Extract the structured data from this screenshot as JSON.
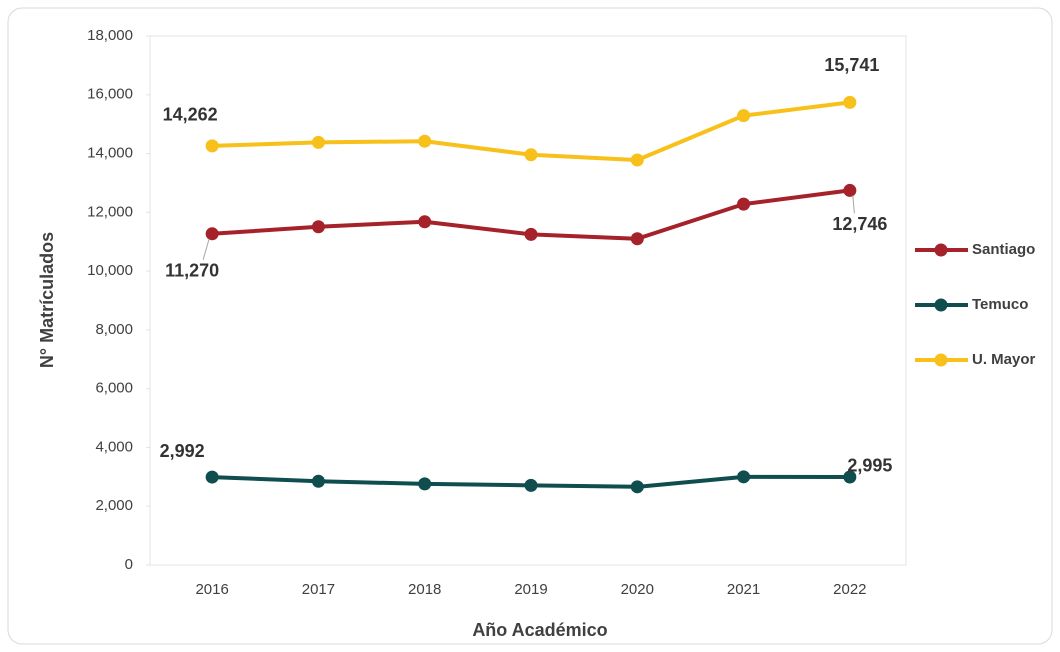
{
  "chart_data": {
    "type": "line",
    "categories": [
      "2016",
      "2017",
      "2018",
      "2019",
      "2020",
      "2021",
      "2022"
    ],
    "series": [
      {
        "name": "Santiago",
        "color": "#a5222a",
        "values": [
          11270,
          11510,
          11680,
          11250,
          11100,
          12280,
          12746
        ],
        "value_labels": [
          "11,270",
          null,
          null,
          null,
          null,
          null,
          "12,746"
        ]
      },
      {
        "name": "Temuco",
        "color": "#0f4d4f",
        "values": [
          2992,
          2850,
          2760,
          2710,
          2660,
          3000,
          2995
        ],
        "value_labels": [
          "2,992",
          null,
          null,
          null,
          null,
          null,
          "2,995"
        ]
      },
      {
        "name": "U. Mayor",
        "color": "#f7c01a",
        "values": [
          14262,
          14380,
          14420,
          13960,
          13780,
          15290,
          15741
        ],
        "value_labels": [
          "14,262",
          null,
          null,
          null,
          null,
          null,
          "15,741"
        ]
      }
    ],
    "x_label": "Año Académico",
    "y_label": "N° Matrículados",
    "ylim": [
      0,
      18000
    ],
    "yticks": [
      0,
      {
        "value": 2000,
        "label": "2,000"
      },
      {
        "value": 4000,
        "label": "4,000"
      },
      {
        "value": 6000,
        "label": "6,000"
      },
      {
        "value": 8000,
        "label": "8,000"
      },
      {
        "value": 10000,
        "label": "10,000"
      },
      {
        "value": 12000,
        "label": "12,000"
      },
      {
        "value": 14000,
        "label": "14,000"
      },
      {
        "value": 16000,
        "label": "16,000"
      },
      {
        "value": 18000,
        "label": "18,000"
      }
    ],
    "legend": "right"
  }
}
